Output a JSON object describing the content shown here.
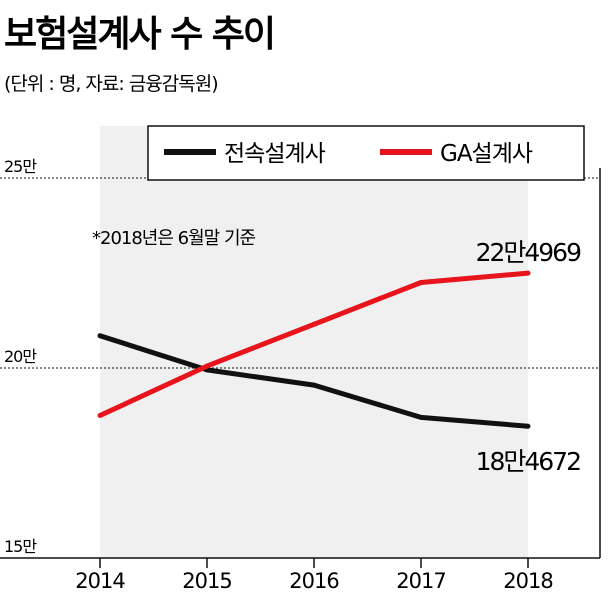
{
  "header": {
    "title": "보험설계사 수 추이",
    "subtitle": "(단위 : 명, 자료: 금융감독원)"
  },
  "note": "*2018년은 6월말 기준",
  "chart_data": {
    "type": "line",
    "categories": [
      "2014",
      "2015",
      "2016",
      "2017",
      "2018"
    ],
    "ylim": [
      150000,
      250000
    ],
    "yticks": [
      {
        "value": 250000,
        "label": "25만"
      },
      {
        "value": 200000,
        "label": "20만"
      },
      {
        "value": 150000,
        "label": "15만"
      }
    ],
    "grid": "dashed horizontal at 20만 and 25만",
    "legend_position": "top",
    "series": [
      {
        "name": "전속설계사",
        "color": "#111111",
        "values": [
          208500,
          199500,
          195500,
          187000,
          184672
        ],
        "end_label": "18만4672"
      },
      {
        "name": "GA설계사",
        "color": "#e8141b",
        "values": [
          187500,
          200500,
          211500,
          222500,
          224969
        ],
        "end_label": "22만4969"
      }
    ]
  }
}
